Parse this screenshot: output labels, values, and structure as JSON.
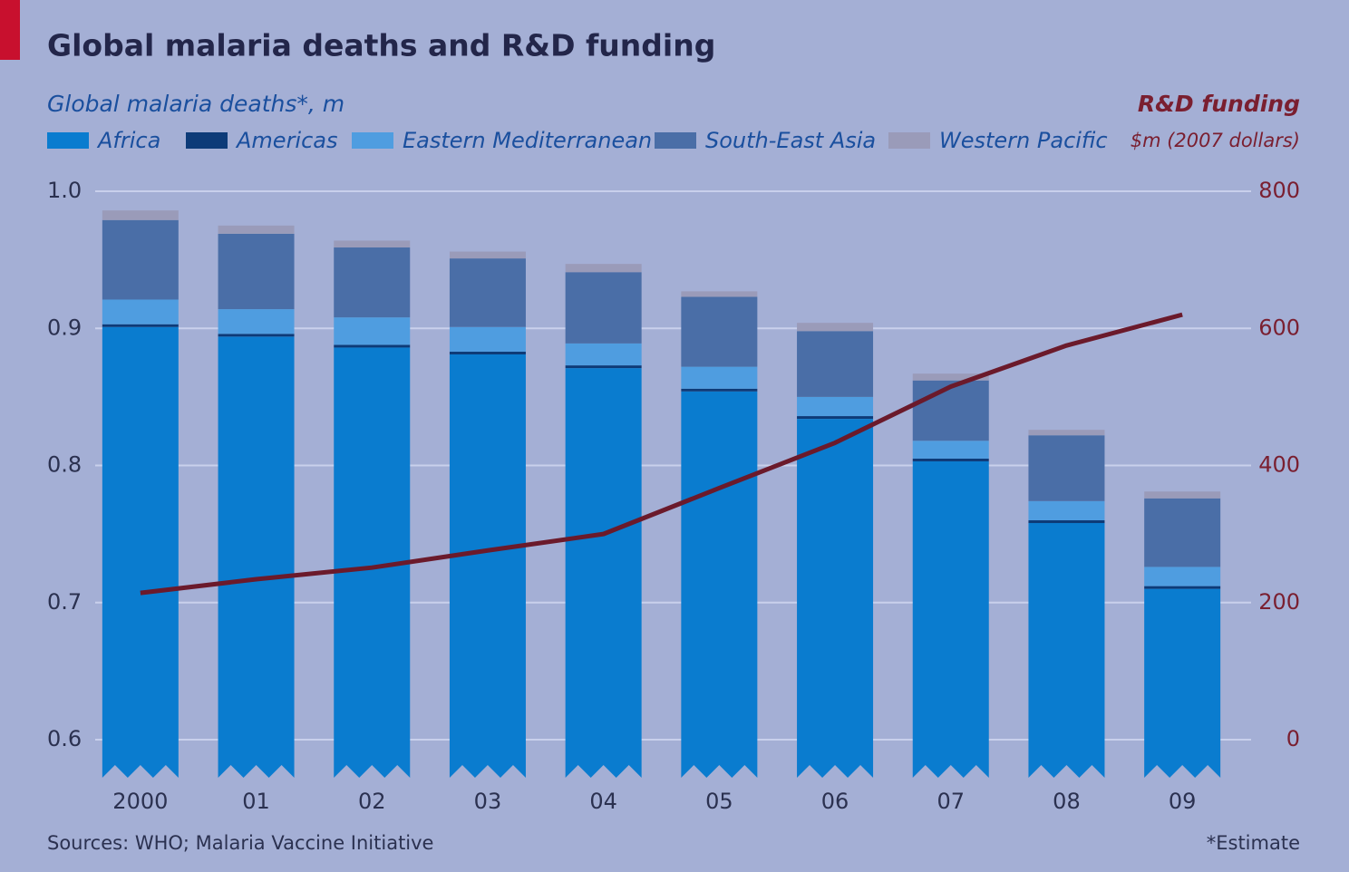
{
  "chart_data": {
    "type": "bar",
    "title": "Global malaria deaths and R&D funding",
    "y_label": "Global malaria deaths*, m",
    "y2_label": "$m (2007 dollars)",
    "source": "Sources: WHO; Malaria Vaccine Initiative",
    "note": "*Estimate",
    "stacked": true,
    "categories": [
      "2000",
      "01",
      "02",
      "03",
      "04",
      "05",
      "06",
      "07",
      "08",
      "09"
    ],
    "series": [
      {
        "name": "Africa",
        "color": "#0a7ccf",
        "values": [
          0.901,
          0.894,
          0.886,
          0.881,
          0.871,
          0.854,
          0.834,
          0.803,
          0.758,
          0.71
        ]
      },
      {
        "name": "Americas",
        "color": "#0d3b78",
        "values": [
          0.002,
          0.002,
          0.002,
          0.002,
          0.002,
          0.002,
          0.002,
          0.002,
          0.002,
          0.002
        ]
      },
      {
        "name": "Eastern Mediterranean",
        "color": "#4f9de0",
        "values": [
          0.018,
          0.018,
          0.02,
          0.018,
          0.016,
          0.016,
          0.014,
          0.013,
          0.014,
          0.014
        ]
      },
      {
        "name": "South-East Asia",
        "color": "#4a6ea7",
        "values": [
          0.058,
          0.055,
          0.051,
          0.05,
          0.052,
          0.051,
          0.048,
          0.044,
          0.048,
          0.05
        ]
      },
      {
        "name": "Western Pacific",
        "color": "#9a9bb9",
        "values": [
          0.007,
          0.006,
          0.005,
          0.005,
          0.006,
          0.004,
          0.006,
          0.005,
          0.004,
          0.005
        ]
      },
      {
        "name": "R&D funding",
        "type": "line",
        "axis": "y2",
        "color": "#6b1a2b",
        "values": [
          214,
          234,
          251,
          276,
          300,
          367,
          433,
          515,
          575,
          620
        ]
      }
    ],
    "ylim": [
      0.6,
      1.0
    ],
    "yticks": [
      0.6,
      0.7,
      0.8,
      0.9,
      {
        "value": 1.0,
        "label": "1.0"
      }
    ],
    "y2lim": [
      0,
      800
    ],
    "y2ticks": [
      0,
      200,
      400,
      600,
      800
    ],
    "grid": true
  }
}
